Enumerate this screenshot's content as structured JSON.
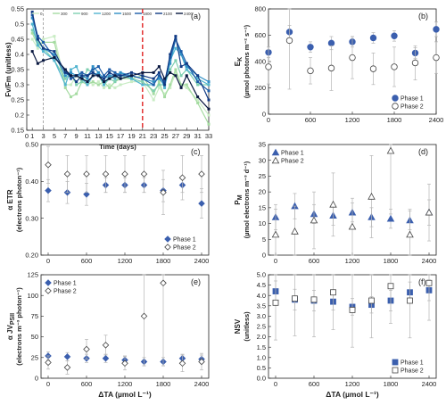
{
  "chart_data": [
    {
      "panel": "(a)",
      "type": "line",
      "xlabel": "Time (days)",
      "ylabel": "Fv/Fm (unitless)",
      "xlim": [
        0,
        33
      ],
      "ylim": [
        0.15,
        0.55
      ],
      "x_ticks": [
        0,
        1,
        3,
        5,
        7,
        9,
        11,
        13,
        15,
        17,
        19,
        21,
        23,
        25,
        27,
        29,
        31,
        33
      ],
      "y_ticks": [
        0.15,
        0.2,
        0.25,
        0.3,
        0.35,
        0.4,
        0.45,
        0.5,
        0.55
      ],
      "x": [
        1,
        2,
        3,
        5,
        7,
        8,
        9,
        10,
        11,
        12,
        13,
        14,
        15,
        16,
        17,
        19,
        21,
        23,
        24,
        25,
        26,
        27,
        28,
        29,
        31,
        33
      ],
      "vlines": [
        {
          "x": 3,
          "color": "#999999",
          "dash": "3,2"
        },
        {
          "x": 21,
          "color": "#e02020",
          "dash": "5,3"
        }
      ],
      "series": [
        {
          "name": "0",
          "color": "#c9ecc4",
          "values": [
            0.45,
            0.42,
            0.45,
            0.46,
            0.3,
            0.3,
            0.33,
            0.31,
            0.32,
            0.3,
            0.31,
            0.29,
            0.3,
            0.29,
            0.3,
            0.31,
            0.31,
            0.25,
            0.29,
            0.27,
            0.29,
            0.34,
            0.3,
            0.29,
            0.25,
            0.2
          ]
        },
        {
          "name": "300",
          "color": "#a5dba1",
          "values": [
            0.47,
            0.43,
            0.44,
            0.44,
            0.29,
            0.26,
            0.27,
            0.31,
            0.3,
            0.31,
            0.3,
            0.31,
            0.29,
            0.31,
            0.32,
            0.32,
            0.33,
            0.27,
            0.31,
            0.26,
            0.3,
            0.35,
            0.3,
            0.3,
            0.24,
            0.17
          ]
        },
        {
          "name": "900",
          "color": "#7ecfb0",
          "values": [
            0.48,
            0.44,
            0.42,
            0.38,
            0.32,
            0.34,
            0.3,
            0.31,
            0.35,
            0.34,
            0.33,
            0.3,
            0.32,
            0.31,
            0.33,
            0.32,
            0.31,
            0.28,
            0.3,
            0.3,
            0.35,
            0.38,
            0.33,
            0.35,
            0.3,
            0.3
          ]
        },
        {
          "name": "1200",
          "color": "#51b4cf",
          "values": [
            0.5,
            0.43,
            0.41,
            0.38,
            0.3,
            0.35,
            0.36,
            0.32,
            0.3,
            0.33,
            0.34,
            0.3,
            0.33,
            0.32,
            0.34,
            0.32,
            0.3,
            0.3,
            0.33,
            0.29,
            0.38,
            0.42,
            0.4,
            0.35,
            0.32,
            0.3
          ]
        },
        {
          "name": "1500",
          "color": "#2f8fc5",
          "values": [
            0.52,
            0.45,
            0.42,
            0.4,
            0.33,
            0.34,
            0.33,
            0.33,
            0.32,
            0.36,
            0.34,
            0.32,
            0.33,
            0.33,
            0.34,
            0.33,
            0.32,
            0.31,
            0.32,
            0.3,
            0.37,
            0.45,
            0.4,
            0.36,
            0.33,
            0.31
          ]
        },
        {
          "name": "1800",
          "color": "#1c5ca8",
          "values": [
            0.53,
            0.46,
            0.44,
            0.39,
            0.35,
            0.32,
            0.33,
            0.34,
            0.33,
            0.35,
            0.36,
            0.33,
            0.35,
            0.34,
            0.33,
            0.33,
            0.32,
            0.3,
            0.33,
            0.31,
            0.39,
            0.45,
            0.41,
            0.37,
            0.31,
            0.28
          ]
        },
        {
          "name": "2100",
          "color": "#113a84",
          "values": [
            0.54,
            0.45,
            0.42,
            0.41,
            0.34,
            0.33,
            0.31,
            0.33,
            0.33,
            0.34,
            0.33,
            0.32,
            0.34,
            0.33,
            0.33,
            0.34,
            0.33,
            0.32,
            0.34,
            0.3,
            0.4,
            0.46,
            0.36,
            0.37,
            0.33,
            0.25
          ]
        },
        {
          "name": "2400",
          "color": "#08173f",
          "values": [
            0.41,
            0.37,
            0.38,
            0.39,
            0.35,
            0.33,
            0.33,
            0.32,
            0.31,
            0.33,
            0.33,
            0.31,
            0.32,
            0.33,
            0.32,
            0.33,
            0.34,
            0.34,
            0.36,
            0.32,
            0.34,
            0.33,
            0.29,
            0.33,
            0.26,
            0.22
          ]
        }
      ]
    },
    {
      "panel": "(b)",
      "type": "scatter",
      "xlabel": "",
      "ylabel": "E_K (µmol photons m⁻² s⁻¹)",
      "xlim": [
        0,
        2400
      ],
      "ylim": [
        0,
        800
      ],
      "x_ticks": [
        0,
        600,
        1200,
        1800,
        2400
      ],
      "y_ticks": [
        0,
        200,
        400,
        600,
        800
      ],
      "x": [
        0,
        300,
        600,
        900,
        1200,
        1500,
        1800,
        2100,
        2400
      ],
      "legend_position": "bottom-right",
      "series": [
        {
          "name": "Phase 1",
          "marker": "circle-filled",
          "color": "#3b5fae",
          "values": [
            470,
            625,
            510,
            540,
            550,
            580,
            595,
            465,
            645
          ],
          "err": [
            40,
            50,
            40,
            50,
            40,
            40,
            40,
            40,
            55
          ]
        },
        {
          "name": "Phase 2",
          "marker": "circle-open",
          "color": "#555555",
          "values": [
            360,
            560,
            330,
            350,
            430,
            345,
            360,
            390,
            430
          ],
          "err": [
            130,
            370,
            100,
            170,
            160,
            120,
            150,
            130,
            120
          ]
        }
      ]
    },
    {
      "panel": "(c)",
      "type": "scatter",
      "xlabel": "",
      "ylabel": "α ETR (electrons photon⁻¹)",
      "xlim": [
        0,
        2400
      ],
      "ylim": [
        0.2,
        0.5
      ],
      "x_ticks": [
        0,
        600,
        1200,
        1800,
        2400
      ],
      "y_ticks": [
        0.2,
        0.3,
        0.4,
        0.5
      ],
      "y_tick_labels": [
        "0.20",
        "0.30",
        "0.40",
        "0.50"
      ],
      "x": [
        0,
        300,
        600,
        900,
        1200,
        1500,
        1800,
        2100,
        2400
      ],
      "legend_position": "bottom-right",
      "series": [
        {
          "name": "Phase 1",
          "marker": "diamond-filled",
          "color": "#3b5fae",
          "values": [
            0.375,
            0.37,
            0.365,
            0.39,
            0.39,
            0.39,
            0.375,
            0.39,
            0.34
          ],
          "err": [
            0.03,
            0.03,
            0.03,
            0.02,
            0.02,
            0.02,
            0.03,
            0.02,
            0.04
          ]
        },
        {
          "name": "Phase 2",
          "marker": "diamond-open",
          "color": "#555555",
          "values": [
            0.445,
            0.42,
            0.42,
            0.42,
            0.42,
            0.42,
            0.37,
            0.41,
            0.42
          ],
          "err": [
            0.05,
            0.05,
            0.05,
            0.05,
            0.05,
            0.05,
            0.06,
            0.06,
            0.05
          ]
        }
      ]
    },
    {
      "panel": "(d)",
      "type": "scatter",
      "xlabel": "",
      "ylabel": "P_M (µmol electrons m⁻³ d⁻¹)",
      "xlim": [
        0,
        2400
      ],
      "ylim": [
        0,
        35
      ],
      "x_ticks": [
        0,
        600,
        1200,
        1800,
        2400
      ],
      "y_ticks": [
        0,
        5,
        10,
        15,
        20,
        25,
        30,
        35
      ],
      "x": [
        0,
        300,
        600,
        900,
        1200,
        1500,
        1800,
        2100,
        2400
      ],
      "legend_position": "top-left",
      "series": [
        {
          "name": "Phase 1",
          "marker": "triangle-filled",
          "color": "#3b5fae",
          "values": [
            12,
            15.5,
            13,
            12.5,
            13.5,
            12,
            11.5,
            11,
            13.5
          ],
          "err": [
            4,
            4,
            3,
            3,
            3,
            3,
            3,
            3,
            4
          ]
        },
        {
          "name": "Phase 2",
          "marker": "triangle-open",
          "color": "#555555",
          "values": [
            6.5,
            7.5,
            11,
            16,
            9,
            18.5,
            33,
            6.5,
            13.5
          ],
          "err": [
            8,
            8,
            9,
            10,
            9,
            13,
            20,
            8,
            9
          ]
        }
      ]
    },
    {
      "panel": "(e)",
      "type": "scatter",
      "xlabel": "ΔTA (µmol L⁻¹)",
      "ylabel": "α JV_PSII (electrons m⁻³ photon⁻¹)",
      "xlim": [
        0,
        2400
      ],
      "ylim": [
        0,
        125
      ],
      "x_ticks": [
        0,
        600,
        1200,
        1800,
        2400
      ],
      "y_ticks": [
        0,
        25,
        50,
        75,
        100,
        125
      ],
      "x": [
        0,
        300,
        600,
        900,
        1200,
        1500,
        1800,
        2100,
        2400
      ],
      "legend_position": "top-left",
      "series": [
        {
          "name": "Phase 1",
          "marker": "diamond-filled",
          "color": "#3b5fae",
          "values": [
            27,
            26,
            24,
            24,
            22,
            20,
            20,
            24,
            23
          ],
          "err": [
            5,
            5,
            5,
            5,
            5,
            5,
            5,
            5,
            5
          ]
        },
        {
          "name": "Phase 2",
          "marker": "diamond-open",
          "color": "#555555",
          "values": [
            19,
            13,
            35,
            40,
            18,
            75,
            115,
            18,
            20
          ],
          "err": [
            8,
            8,
            12,
            12,
            8,
            60,
            100,
            10,
            10
          ]
        }
      ]
    },
    {
      "panel": "(f)",
      "type": "scatter",
      "xlabel": "ΔTA (µmol L⁻¹)",
      "ylabel": "NSV (unitless)",
      "xlim": [
        0,
        2400
      ],
      "ylim": [
        0,
        5
      ],
      "x_ticks": [
        0,
        600,
        1200,
        1800,
        2400
      ],
      "y_ticks": [
        0,
        0.5,
        1,
        1.5,
        2,
        2.5,
        3,
        3.5,
        4,
        4.5,
        5
      ],
      "y_tick_labels": [
        "0.0",
        "0.5",
        "1.0",
        "1.5",
        "2.0",
        "2.5",
        "3.0",
        "3.5",
        "4.0",
        "4.5",
        "5.0"
      ],
      "x": [
        0,
        300,
        600,
        900,
        1200,
        1500,
        1800,
        2100,
        2400
      ],
      "legend_position": "bottom-right",
      "series": [
        {
          "name": "Phase 1",
          "marker": "square-filled",
          "color": "#3b5fae",
          "values": [
            4.2,
            3.8,
            3.75,
            3.7,
            3.45,
            3.55,
            3.75,
            4.15,
            4.25
          ],
          "err": [
            0.5,
            0.5,
            0.5,
            0.4,
            0.4,
            0.4,
            0.5,
            0.5,
            0.5
          ]
        },
        {
          "name": "Phase 2",
          "marker": "square-open",
          "color": "#333333",
          "values": [
            3.65,
            3.85,
            3.8,
            4.15,
            3.3,
            3.75,
            4.45,
            3.75,
            4.6
          ],
          "err": [
            1.8,
            1.8,
            1.8,
            1.8,
            1.8,
            1.8,
            1.8,
            1.8,
            1.8
          ]
        }
      ]
    }
  ]
}
